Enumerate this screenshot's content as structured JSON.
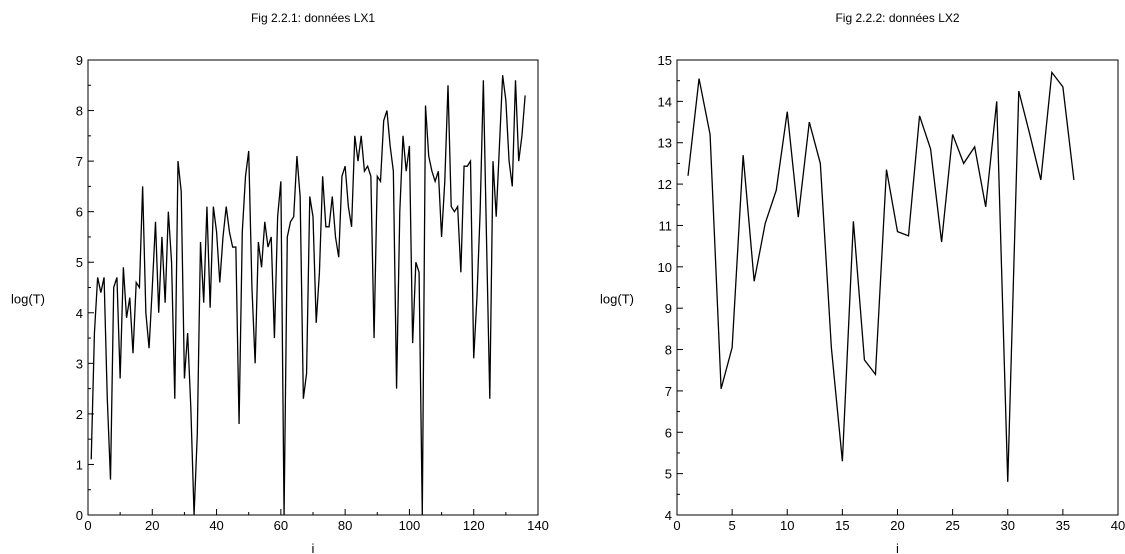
{
  "chart_data": [
    {
      "type": "line",
      "title": "Fig 2.2.1: données LX1",
      "xlabel": "i",
      "ylabel": "log(T)",
      "xlim": [
        0,
        140
      ],
      "ylim": [
        0,
        9
      ],
      "xticks": [
        0,
        20,
        40,
        60,
        80,
        100,
        120,
        140
      ],
      "yticks": [
        0,
        1,
        2,
        3,
        4,
        5,
        6,
        7,
        8,
        9
      ],
      "grid": false,
      "series": [
        {
          "color": "#000000",
          "values": [
            1.1,
            3.6,
            4.7,
            4.4,
            4.7,
            2.3,
            0.7,
            4.5,
            4.7,
            2.7,
            4.9,
            3.9,
            4.3,
            3.2,
            4.6,
            4.5,
            6.5,
            4.0,
            3.3,
            4.5,
            5.8,
            4.0,
            5.5,
            4.2,
            6.0,
            5.0,
            2.3,
            7.0,
            6.4,
            2.7,
            3.6,
            2.1,
            0.0,
            1.6,
            5.4,
            4.2,
            6.1,
            4.1,
            6.1,
            5.6,
            4.6,
            5.5,
            6.1,
            5.6,
            5.3,
            5.3,
            1.8,
            5.6,
            6.7,
            7.2,
            4.5,
            3.0,
            5.4,
            4.9,
            5.8,
            5.3,
            5.5,
            3.5,
            5.9,
            6.6,
            0.0,
            5.5,
            5.8,
            5.9,
            7.1,
            6.3,
            2.3,
            2.8,
            6.3,
            5.9,
            3.8,
            4.8,
            6.7,
            5.7,
            5.7,
            6.3,
            5.5,
            5.1,
            6.7,
            6.9,
            6.1,
            5.7,
            7.5,
            7.0,
            7.5,
            6.8,
            6.9,
            6.7,
            3.5,
            6.7,
            6.6,
            7.8,
            8.0,
            7.3,
            6.8,
            2.5,
            6.0,
            7.5,
            6.8,
            7.3,
            3.4,
            5.0,
            4.8,
            0.0,
            8.1,
            7.1,
            6.8,
            6.6,
            6.8,
            5.5,
            6.6,
            8.5,
            6.1,
            6.0,
            6.1,
            4.8,
            6.9,
            6.9,
            7.0,
            3.1,
            4.3,
            6.0,
            8.6,
            5.4,
            2.3,
            7.0,
            5.9,
            7.3,
            8.7,
            8.2,
            7.0,
            6.5,
            8.6,
            7.0,
            7.5,
            8.3
          ]
        }
      ]
    },
    {
      "type": "line",
      "title": "Fig 2.2.2: données LX2",
      "xlabel": "i",
      "ylabel": "log(T)",
      "xlim": [
        0,
        40
      ],
      "ylim": [
        4,
        15
      ],
      "xticks": [
        0,
        5,
        10,
        15,
        20,
        25,
        30,
        35,
        40
      ],
      "yticks": [
        4,
        5,
        6,
        7,
        8,
        9,
        10,
        11,
        12,
        13,
        14,
        15
      ],
      "grid": false,
      "series": [
        {
          "color": "#000000",
          "values": [
            12.2,
            14.55,
            13.2,
            7.05,
            8.05,
            12.7,
            9.65,
            11.05,
            11.85,
            13.75,
            11.2,
            13.5,
            12.5,
            8.05,
            5.3,
            11.1,
            7.75,
            7.4,
            12.35,
            10.85,
            10.75,
            13.65,
            12.85,
            10.6,
            13.2,
            12.5,
            12.9,
            11.45,
            14.0,
            4.8,
            14.25,
            13.2,
            12.1,
            14.7,
            14.35,
            12.1
          ]
        }
      ]
    }
  ]
}
